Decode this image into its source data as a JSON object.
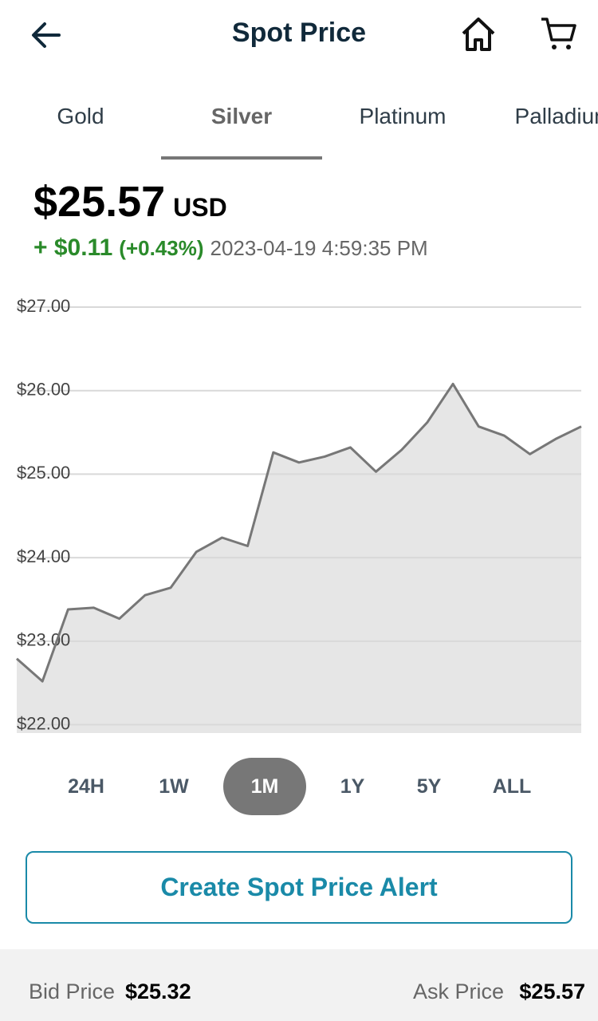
{
  "header": {
    "title": "Spot Price"
  },
  "tabs": [
    "Gold",
    "Silver",
    "Platinum",
    "Palladium"
  ],
  "active_tab": 1,
  "price": {
    "value": "$25.57",
    "currency": "USD",
    "change": "+ $0.11",
    "change_percent": "(+0.43%)",
    "timestamp": "2023-04-19 4:59:35 PM"
  },
  "chart_data": {
    "type": "area",
    "color": "#777777",
    "fill": "#e6e6e6",
    "grid": true,
    "values": [
      22.79,
      22.52,
      23.38,
      23.4,
      23.27,
      23.55,
      23.64,
      24.07,
      24.24,
      24.14,
      25.26,
      25.14,
      25.21,
      25.32,
      25.03,
      25.29,
      25.62,
      26.08,
      25.57,
      25.46,
      25.24,
      25.42,
      25.57
    ],
    "ylim": [
      21.9,
      27
    ],
    "yticks": [
      {
        "value": 22,
        "label": "$22.00"
      },
      {
        "value": 23,
        "label": "$23.00"
      },
      {
        "value": 24,
        "label": "$24.00"
      },
      {
        "value": 25,
        "label": "$25.00"
      },
      {
        "value": 26,
        "label": "$26.00"
      },
      {
        "value": 27,
        "label": "$27.00"
      }
    ]
  },
  "ranges": [
    "24H",
    "1W",
    "1M",
    "1Y",
    "5Y",
    "ALL"
  ],
  "active_range": 2,
  "alert_button": "Create Spot Price Alert",
  "footer": {
    "bid_label": "Bid Price",
    "bid_value": "$25.32",
    "ask_label": "Ask Price",
    "ask_value": "$25.57"
  }
}
